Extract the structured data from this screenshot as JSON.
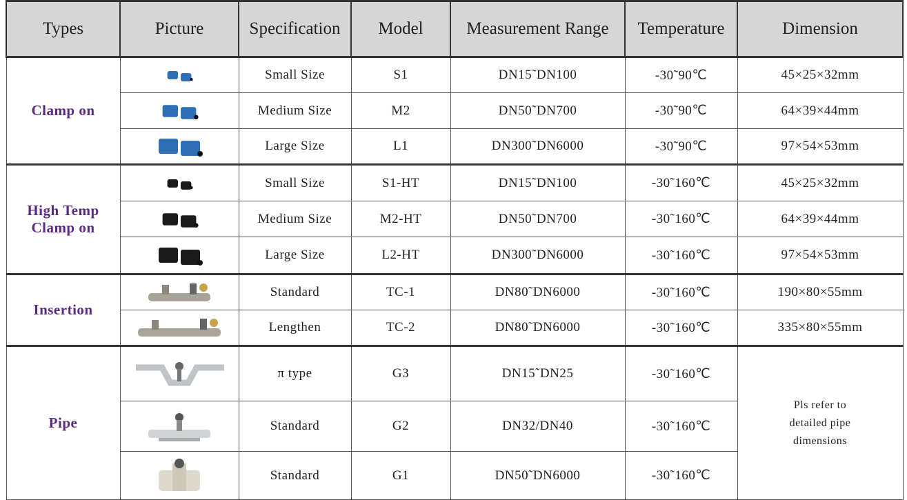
{
  "table": {
    "headers": [
      "Types",
      "Picture",
      "Specification",
      "Model",
      "Measurement Range",
      "Temperature",
      "Dimension"
    ],
    "groups": [
      {
        "type": "Clamp on",
        "rows": [
          {
            "specification": "Small Size",
            "model": "S1",
            "measurement_range": "DN15˜DN100",
            "temperature": "-30˜90℃",
            "dimension": "45×25×32mm"
          },
          {
            "specification": "Medium Size",
            "model": "M2",
            "measurement_range": "DN50˜DN700",
            "temperature": "-30˜90℃",
            "dimension": "64×39×44mm"
          },
          {
            "specification": "Large Size",
            "model": "L1",
            "measurement_range": "DN300˜DN6000",
            "temperature": "-30˜90℃",
            "dimension": "97×54×53mm"
          }
        ]
      },
      {
        "type": "High Temp Clamp on",
        "rows": [
          {
            "specification": "Small Size",
            "model": "S1-HT",
            "measurement_range": "DN15˜DN100",
            "temperature": "-30˜160℃",
            "dimension": "45×25×32mm"
          },
          {
            "specification": "Medium Size",
            "model": "M2-HT",
            "measurement_range": "DN50˜DN700",
            "temperature": "-30˜160℃",
            "dimension": "64×39×44mm"
          },
          {
            "specification": "Large Size",
            "model": "L2-HT",
            "measurement_range": "DN300˜DN6000",
            "temperature": "-30˜160℃",
            "dimension": "97×54×53mm"
          }
        ]
      },
      {
        "type": "Insertion",
        "rows": [
          {
            "specification": "Standard",
            "model": "TC-1",
            "measurement_range": "DN80˜DN6000",
            "temperature": "-30˜160℃",
            "dimension": "190×80×55mm"
          },
          {
            "specification": "Lengthen",
            "model": "TC-2",
            "measurement_range": "DN80˜DN6000",
            "temperature": "-30˜160℃",
            "dimension": "335×80×55mm"
          }
        ]
      },
      {
        "type": "Pipe",
        "dimension": "Pls refer to detailed pipe dimensions",
        "rows": [
          {
            "specification": "π   type",
            "model": "G3",
            "measurement_range": "DN15˜DN25",
            "temperature": "-30˜160℃"
          },
          {
            "specification": "Standard",
            "model": "G2",
            "measurement_range": "DN32/DN40",
            "temperature": "-30˜160℃"
          },
          {
            "specification": "Standard",
            "model": "G1",
            "measurement_range": "DN50˜DN6000",
            "temperature": "-30˜160℃"
          }
        ]
      }
    ]
  }
}
